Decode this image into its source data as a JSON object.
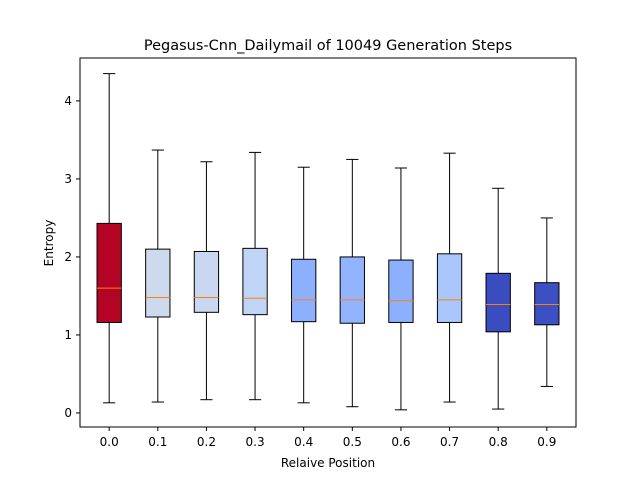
{
  "chart_data": {
    "type": "box",
    "title": "Pegasus-Cnn_Dailymail of 10049 Generation Steps",
    "xlabel": "Relaive Position",
    "ylabel": "Entropy",
    "ylim": [
      -0.18,
      4.55
    ],
    "yticks": [
      0,
      1,
      2,
      3,
      4
    ],
    "grid": false,
    "categories": [
      "0.0",
      "0.1",
      "0.2",
      "0.3",
      "0.4",
      "0.5",
      "0.6",
      "0.7",
      "0.8",
      "0.9"
    ],
    "boxes": [
      {
        "label": "0.0",
        "whisker_low": 0.13,
        "q1": 1.16,
        "median": 1.6,
        "q3": 2.43,
        "whisker_high": 4.35,
        "color": "#b40426"
      },
      {
        "label": "0.1",
        "whisker_low": 0.14,
        "q1": 1.23,
        "median": 1.48,
        "q3": 2.1,
        "whisker_high": 3.37,
        "color": "#cdd9ec"
      },
      {
        "label": "0.2",
        "whisker_low": 0.17,
        "q1": 1.29,
        "median": 1.48,
        "q3": 2.07,
        "whisker_high": 3.22,
        "color": "#c9d7f0"
      },
      {
        "label": "0.3",
        "whisker_low": 0.17,
        "q1": 1.26,
        "median": 1.47,
        "q3": 2.11,
        "whisker_high": 3.34,
        "color": "#c0d4f5"
      },
      {
        "label": "0.4",
        "whisker_low": 0.13,
        "q1": 1.17,
        "median": 1.45,
        "q3": 1.97,
        "whisker_high": 3.15,
        "color": "#8db0fe"
      },
      {
        "label": "0.5",
        "whisker_low": 0.08,
        "q1": 1.15,
        "median": 1.45,
        "q3": 2.0,
        "whisker_high": 3.25,
        "color": "#92b4fe"
      },
      {
        "label": "0.6",
        "whisker_low": 0.04,
        "q1": 1.16,
        "median": 1.44,
        "q3": 1.96,
        "whisker_high": 3.14,
        "color": "#8caffe"
      },
      {
        "label": "0.7",
        "whisker_low": 0.14,
        "q1": 1.16,
        "median": 1.45,
        "q3": 2.04,
        "whisker_high": 3.33,
        "color": "#aac7fd"
      },
      {
        "label": "0.8",
        "whisker_low": 0.05,
        "q1": 1.04,
        "median": 1.39,
        "q3": 1.79,
        "whisker_high": 2.88,
        "color": "#3b4cc0"
      },
      {
        "label": "0.9",
        "whisker_low": 0.34,
        "q1": 1.13,
        "median": 1.39,
        "q3": 1.67,
        "whisker_high": 2.5,
        "color": "#3d50c3"
      }
    ],
    "median_color": "#ff7f0e"
  }
}
